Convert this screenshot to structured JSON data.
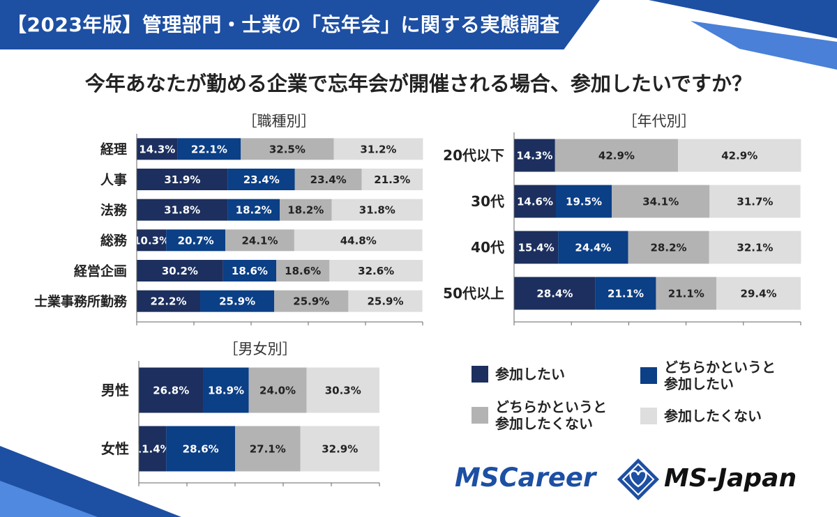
{
  "header": {
    "title": "【2023年版】管理部門・士業の「忘年会」に関する実態調査",
    "subtitle": "今年あなたが勤める企業で忘年会が開催される場合、参加したいですか？"
  },
  "colors": {
    "banner": "#1d4fa3",
    "navy": "#1c2f5e",
    "blue": "#0b3f86",
    "gray": "#b3b3b3",
    "lightgray": "#dedede",
    "brand": "#1d4fa3"
  },
  "legend": {
    "items": [
      {
        "label": "参加したい",
        "color_key": "navy"
      },
      {
        "label": "どちらかというと\n参加したい",
        "color_key": "blue"
      },
      {
        "label": "どちらかというと\n参加したくない",
        "color_key": "gray"
      },
      {
        "label": "参加したくない",
        "color_key": "lightgray"
      }
    ]
  },
  "brand": {
    "left": "MSCareer",
    "right": "MS-Japan",
    "logo_icon": "heart-diamond-icon"
  },
  "chart_data": [
    {
      "type": "bar",
      "stacked": true,
      "orientation": "horizontal",
      "title": "［職種別］",
      "categories": [
        "経理",
        "人事",
        "法務",
        "総務",
        "経営企画",
        "士業事務所勤務"
      ],
      "series": [
        {
          "name": "参加したい",
          "values": [
            14.3,
            31.9,
            31.8,
            10.3,
            30.2,
            22.2
          ]
        },
        {
          "name": "どちらかというと参加したい",
          "values": [
            22.1,
            23.4,
            18.2,
            20.7,
            18.6,
            25.9
          ]
        },
        {
          "name": "どちらかというと参加したくない",
          "values": [
            32.5,
            23.4,
            18.2,
            24.1,
            18.6,
            25.9
          ]
        },
        {
          "name": "参加したくない",
          "values": [
            31.2,
            21.3,
            31.8,
            44.8,
            32.6,
            25.9
          ]
        }
      ],
      "xlim": [
        0,
        100
      ],
      "value_format": "%"
    },
    {
      "type": "bar",
      "stacked": true,
      "orientation": "horizontal",
      "title": "［年代別］",
      "categories": [
        "20代以下",
        "30代",
        "40代",
        "50代以上"
      ],
      "series": [
        {
          "name": "参加したい",
          "values": [
            14.3,
            14.6,
            15.4,
            28.4
          ]
        },
        {
          "name": "どちらかというと参加したい",
          "values": [
            0,
            19.5,
            24.4,
            21.1
          ]
        },
        {
          "name": "どちらかというと参加したくない",
          "values": [
            42.9,
            34.1,
            28.2,
            21.1
          ]
        },
        {
          "name": "参加したくない",
          "values": [
            42.9,
            31.7,
            32.1,
            29.4
          ]
        }
      ],
      "xlim": [
        0,
        100
      ],
      "value_format": "%"
    },
    {
      "type": "bar",
      "stacked": true,
      "orientation": "horizontal",
      "title": "［男女別］",
      "categories": [
        "男性",
        "女性"
      ],
      "series": [
        {
          "name": "参加したい",
          "values": [
            26.8,
            11.4
          ]
        },
        {
          "name": "どちらかというと参加したい",
          "values": [
            18.9,
            28.6
          ]
        },
        {
          "name": "どちらかというと参加したくない",
          "values": [
            24.0,
            27.1
          ]
        },
        {
          "name": "参加したくない",
          "values": [
            30.3,
            32.9
          ]
        }
      ],
      "xlim": [
        0,
        100
      ],
      "value_format": "%"
    }
  ]
}
